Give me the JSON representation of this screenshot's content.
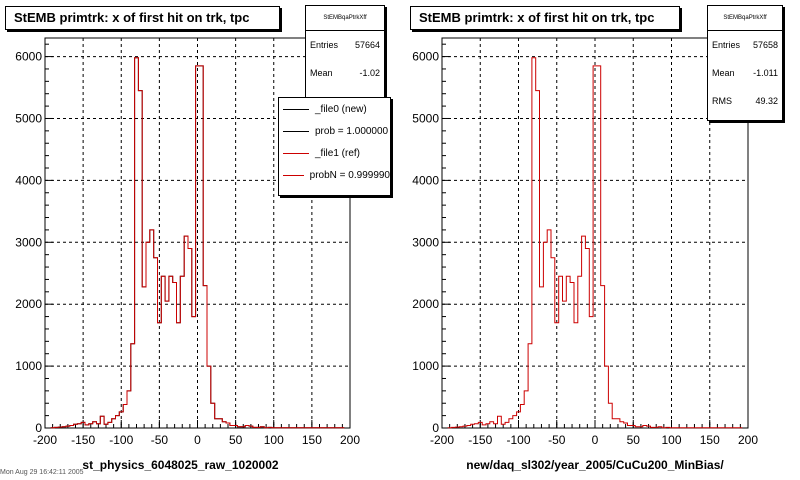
{
  "footer_text": "Mon Aug 29 16:42:11 2005",
  "colors": {
    "new": "#000000",
    "ref": "#cc0000"
  },
  "chart_data": [
    {
      "type": "histogram",
      "title": "StEMB primtrk: x of first hit on trk, tpc",
      "xlabel": "st_physics_6048025_raw_1020002",
      "ylabel": "",
      "xlim": [
        -200,
        200
      ],
      "ylim": [
        0,
        6300
      ],
      "xticks": [
        -200,
        -150,
        -100,
        -50,
        0,
        50,
        100,
        150,
        200
      ],
      "yticks": [
        0,
        1000,
        2000,
        3000,
        4000,
        5000,
        6000
      ],
      "grid": true,
      "bin_width": 5,
      "x": [
        -190,
        -185,
        -180,
        -175,
        -170,
        -165,
        -160,
        -155,
        -150,
        -145,
        -140,
        -135,
        -130,
        -125,
        -120,
        -115,
        -110,
        -105,
        -100,
        -95,
        -90,
        -85,
        -80,
        -75,
        -70,
        -65,
        -60,
        -55,
        -50,
        -45,
        -40,
        -35,
        -30,
        -25,
        -20,
        -15,
        -10,
        -5,
        0,
        5,
        10,
        15,
        20,
        25,
        30,
        35,
        40,
        45,
        50,
        55,
        60,
        65,
        70,
        75,
        80,
        85,
        90,
        95,
        100,
        105,
        110,
        115,
        120,
        125,
        130,
        135,
        140,
        145,
        150,
        155,
        160,
        165,
        170,
        175,
        180,
        185,
        190
      ],
      "series": [
        {
          "name": "_file0 (new)",
          "color": "#000000",
          "values": [
            5,
            10,
            15,
            20,
            30,
            40,
            60,
            70,
            90,
            50,
            70,
            100,
            70,
            190,
            60,
            90,
            150,
            200,
            260,
            380,
            600,
            1360,
            5980,
            5450,
            2280,
            3000,
            3200,
            2750,
            1700,
            2450,
            2050,
            2450,
            2350,
            1700,
            2450,
            3100,
            2900,
            1800,
            5850,
            5850,
            2300,
            1000,
            400,
            150,
            150,
            100,
            80,
            40,
            40,
            20,
            20,
            40,
            30,
            10,
            10,
            20,
            5,
            10,
            5,
            5,
            5,
            5,
            5,
            5,
            5,
            5,
            5,
            5,
            5,
            5,
            5,
            5,
            5,
            5,
            5,
            5,
            5
          ]
        },
        {
          "name": "_file1 (ref)",
          "color": "#cc0000",
          "values": [
            5,
            10,
            15,
            20,
            30,
            40,
            60,
            70,
            90,
            50,
            70,
            100,
            70,
            190,
            60,
            90,
            150,
            200,
            260,
            380,
            600,
            1360,
            5980,
            5450,
            2280,
            3000,
            3200,
            2750,
            1700,
            2450,
            2050,
            2450,
            2350,
            1700,
            2450,
            3100,
            2900,
            1800,
            5850,
            5850,
            2300,
            1000,
            400,
            150,
            150,
            100,
            80,
            40,
            40,
            20,
            20,
            40,
            30,
            10,
            10,
            20,
            5,
            10,
            5,
            5,
            5,
            5,
            5,
            5,
            5,
            5,
            5,
            5,
            5,
            5,
            5,
            5,
            5,
            5,
            5,
            5,
            5
          ]
        }
      ],
      "stats": {
        "name": "StEMBqaPtrkXff",
        "entries_label": "Entries",
        "entries": "57664",
        "mean_label": "Mean",
        "mean": "-1.02"
      },
      "legend": [
        {
          "label": "_file0 (new)",
          "color": "#000000"
        },
        {
          "label": "prob = 1.000000",
          "color": "#000000"
        },
        {
          "label": "_file1 (ref)",
          "color": "#cc0000"
        },
        {
          "label": "probN = 0.999990",
          "color": "#cc0000"
        }
      ]
    },
    {
      "type": "histogram",
      "title": "StEMB primtrk: x of first hit on trk, tpc",
      "xlabel": "new/daq_sl302/year_2005/CuCu200_MinBias/",
      "ylabel": "",
      "xlim": [
        -200,
        200
      ],
      "ylim": [
        0,
        6300
      ],
      "xticks": [
        -200,
        -150,
        -100,
        -50,
        0,
        50,
        100,
        150,
        200
      ],
      "yticks": [
        0,
        1000,
        2000,
        3000,
        4000,
        5000,
        6000
      ],
      "grid": true,
      "bin_width": 5,
      "x": [
        -190,
        -185,
        -180,
        -175,
        -170,
        -165,
        -160,
        -155,
        -150,
        -145,
        -140,
        -135,
        -130,
        -125,
        -120,
        -115,
        -110,
        -105,
        -100,
        -95,
        -90,
        -85,
        -80,
        -75,
        -70,
        -65,
        -60,
        -55,
        -50,
        -45,
        -40,
        -35,
        -30,
        -25,
        -20,
        -15,
        -10,
        -5,
        0,
        5,
        10,
        15,
        20,
        25,
        30,
        35,
        40,
        45,
        50,
        55,
        60,
        65,
        70,
        75,
        80,
        85,
        90,
        95,
        100,
        105,
        110,
        115,
        120,
        125,
        130,
        135,
        140,
        145,
        150,
        155,
        160,
        165,
        170,
        175,
        180,
        185,
        190
      ],
      "series": [
        {
          "name": "_file1 (ref)",
          "color": "#cc0000",
          "values": [
            5,
            10,
            15,
            20,
            30,
            40,
            60,
            70,
            90,
            50,
            70,
            100,
            70,
            190,
            60,
            90,
            150,
            200,
            260,
            380,
            600,
            1360,
            5980,
            5450,
            2280,
            3000,
            3200,
            2750,
            1700,
            2450,
            2050,
            2450,
            2350,
            1700,
            2450,
            3100,
            2900,
            1800,
            5850,
            5850,
            2300,
            1000,
            400,
            150,
            150,
            100,
            80,
            40,
            40,
            20,
            20,
            40,
            30,
            10,
            10,
            20,
            5,
            10,
            5,
            5,
            5,
            5,
            5,
            5,
            5,
            5,
            5,
            5,
            5,
            5,
            5,
            5,
            5,
            5,
            5,
            5,
            5
          ]
        }
      ],
      "stats": {
        "name": "StEMBqaPtrkXff",
        "entries_label": "Entries",
        "entries": "57658",
        "mean_label": "Mean",
        "mean": "-1.011",
        "rms_label": "RMS",
        "rms": "49.32"
      }
    }
  ]
}
